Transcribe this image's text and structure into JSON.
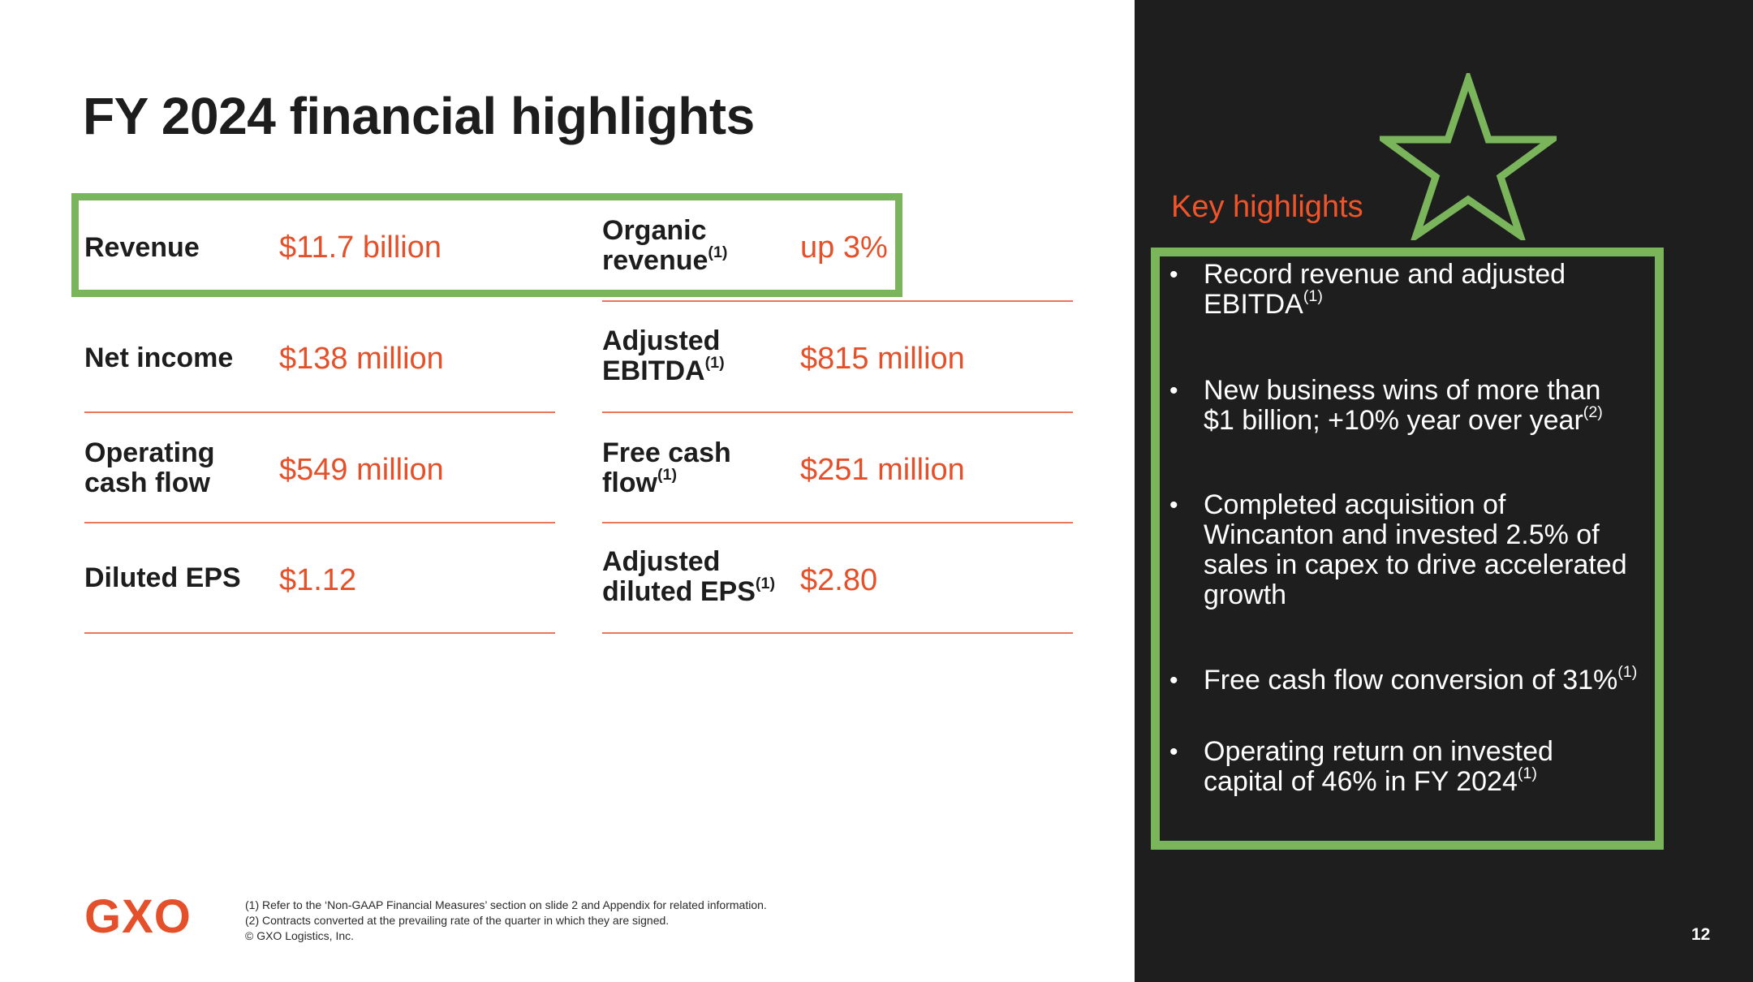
{
  "title": "FY 2024 financial highlights",
  "metrics": [
    {
      "label_lines": [
        "Revenue"
      ],
      "value": "$11.7 billion"
    },
    {
      "label_lines": [
        "Organic",
        "revenue"
      ],
      "label_note": "(1)",
      "value": "up 3%"
    },
    {
      "label_lines": [
        "Net income"
      ],
      "value": "$138 million"
    },
    {
      "label_lines": [
        "Adjusted",
        "EBITDA"
      ],
      "label_note": "(1)",
      "value": "$815 million"
    },
    {
      "label_lines": [
        "Operating",
        "cash flow"
      ],
      "value": "$549 million"
    },
    {
      "label_lines": [
        "Free cash",
        "flow"
      ],
      "label_note": "(1)",
      "value": "$251 million"
    },
    {
      "label_lines": [
        "Diluted EPS"
      ],
      "value": "$1.12"
    },
    {
      "label_lines": [
        "Adjusted",
        "diluted EPS"
      ],
      "label_note": "(1)",
      "value": "$2.80"
    }
  ],
  "key_highlights": {
    "title": "Key highlights",
    "bullet_symbol": "•",
    "bullets": [
      {
        "lines": [
          "Record revenue and adjusted",
          "EBITDA"
        ],
        "note": "(1)"
      },
      {
        "lines": [
          "New business wins of more than",
          "$1 billion; +10% year over year"
        ],
        "note": "(2)"
      },
      {
        "lines": [
          "Completed acquisition of",
          "Wincanton and invested 2.5% of",
          "sales in capex to drive accelerated",
          "growth"
        ]
      },
      {
        "lines": [
          "Free cash flow conversion of 31%"
        ],
        "note": "(1)"
      },
      {
        "lines": [
          "Operating return on invested",
          "capital of 46% in FY 2024"
        ],
        "note": "(1)"
      }
    ]
  },
  "logo": "GXO",
  "footnotes": [
    "(1) Refer to the ‘Non-GAAP Financial Measures’ section on slide 2 and Appendix for related information.",
    "(2) Contracts converted at the prevailing rate of the quarter in which they are signed.",
    "© GXO Logistics, Inc."
  ],
  "page_number": "12",
  "colors": {
    "accent_orange": "#e4502a",
    "highlight_green": "#7ab55c",
    "panel_dark": "#1e1e1e",
    "text_dark": "#1d1d1d"
  },
  "icons": {
    "star": "star-outline-icon"
  }
}
